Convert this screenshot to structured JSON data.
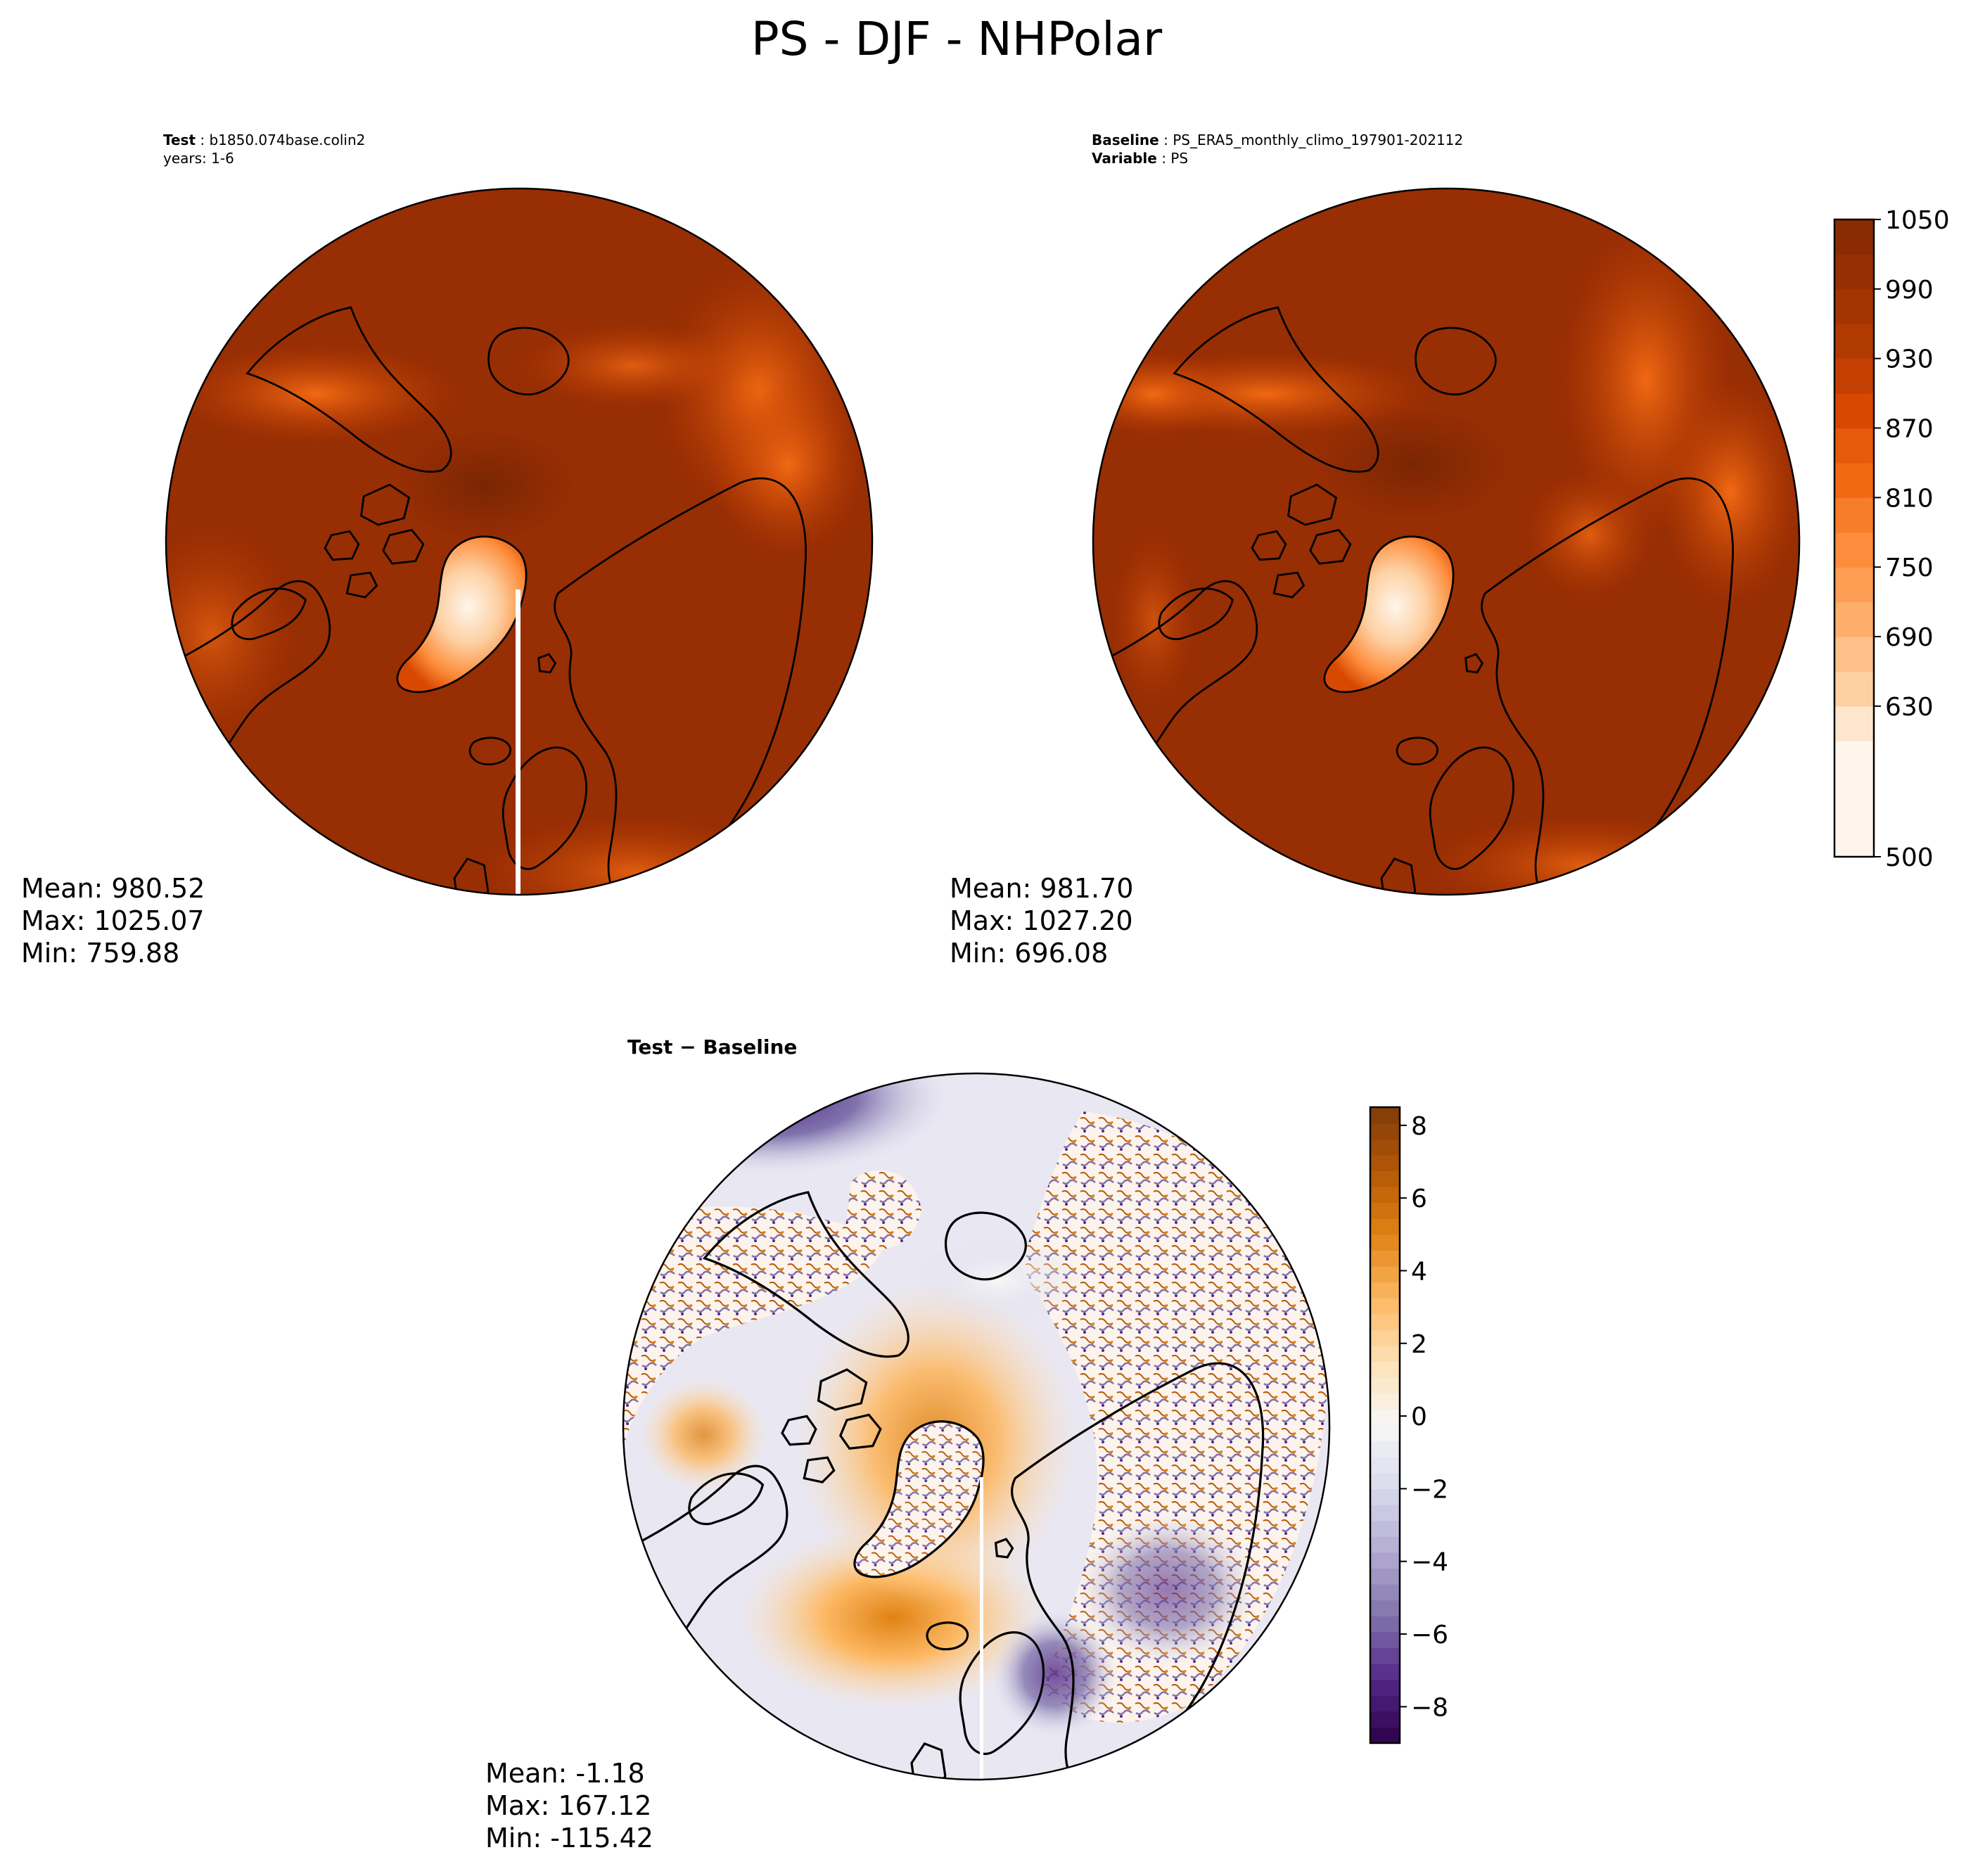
{
  "title": "PS - DJF - NHPolar",
  "colors": {
    "land_test": "#ff8f3a",
    "ocean_base": "#982e04",
    "high_core": "#7a2603",
    "diff_positive": "#e08214",
    "diff_negative": "#542788",
    "coast": "#000000"
  },
  "chart_data": [
    {
      "type": "heatmap",
      "projection": "north-polar-stereographic",
      "label_key": "Test",
      "label_value": "b1850.074base.colin2",
      "subtitle": "years: 1-6",
      "stats": {
        "mean": "Mean: 980.52",
        "max": "Max: 1025.07",
        "min": "Min: 759.88"
      },
      "value_range": [
        500,
        1050
      ]
    },
    {
      "type": "heatmap",
      "projection": "north-polar-stereographic",
      "label_key": "Baseline",
      "label_value": "PS_ERA5_monthly_climo_197901-202112",
      "subtitle_key": "Variable",
      "subtitle_value": "PS",
      "stats": {
        "mean": "Mean: 981.70",
        "max": "Max: 1027.20",
        "min": "Min: 696.08"
      },
      "value_range": [
        500,
        1050
      ],
      "colorbar": {
        "min": 500,
        "max": 1050,
        "ticks": [
          500,
          630,
          690,
          750,
          810,
          870,
          930,
          990,
          1050
        ],
        "levels": [
          500,
          600,
          630,
          660,
          690,
          720,
          750,
          780,
          810,
          840,
          870,
          900,
          930,
          960,
          990,
          1020,
          1050
        ],
        "colors": [
          "#fff5eb",
          "#fee6ce",
          "#fdd0a2",
          "#fdc08a",
          "#fdae6b",
          "#fd9d54",
          "#fd8d3c",
          "#f87d2a",
          "#f16913",
          "#e55a0b",
          "#d94801",
          "#c44002",
          "#b13a03",
          "#a33503",
          "#982e04",
          "#8b2b04"
        ]
      }
    },
    {
      "type": "heatmap",
      "projection": "north-polar-stereographic",
      "label": "Test − Baseline",
      "stats": {
        "mean": "Mean: -1.18",
        "max": "Max: 167.12",
        "min": "Min: -115.42"
      },
      "value_range": [
        -9,
        8.5
      ],
      "colorbar": {
        "min": -9,
        "max": 8.5,
        "ticks": [
          -8,
          -6,
          -4,
          -2,
          0,
          2,
          4,
          6,
          8
        ],
        "tick_labels": [
          "−8",
          "−6",
          "−4",
          "−2",
          "0",
          "2",
          "4",
          "6",
          "8"
        ],
        "colors": [
          "#2d004b",
          "#542788",
          "#8073ac",
          "#b2abd2",
          "#d8daeb",
          "#f7f7f7",
          "#fee0b6",
          "#fdb863",
          "#e08214",
          "#b35806",
          "#7f3b08"
        ]
      }
    }
  ]
}
